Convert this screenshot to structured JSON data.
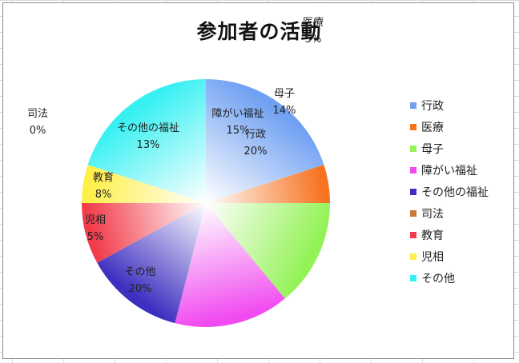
{
  "chart_data": {
    "type": "pie",
    "title": "参加者の活動",
    "categories": [
      "行政",
      "医療",
      "母子",
      "障がい福祉",
      "その他の福祉",
      "司法",
      "教育",
      "児相",
      "その他"
    ],
    "values": [
      20,
      5,
      14,
      15,
      13,
      0,
      8,
      5,
      20
    ],
    "data_labels": [
      "20%",
      "5%",
      "14%",
      "15%",
      "13%",
      "0%",
      "8%",
      "5%",
      "20%"
    ],
    "colors": [
      "#6fa0f2",
      "#f77321",
      "#93f255",
      "#f04bf0",
      "#3d2fbf",
      "#c77a3a",
      "#f23c4b",
      "#ffef4a",
      "#36f0f2"
    ],
    "legend_position": "right",
    "grid": false
  }
}
